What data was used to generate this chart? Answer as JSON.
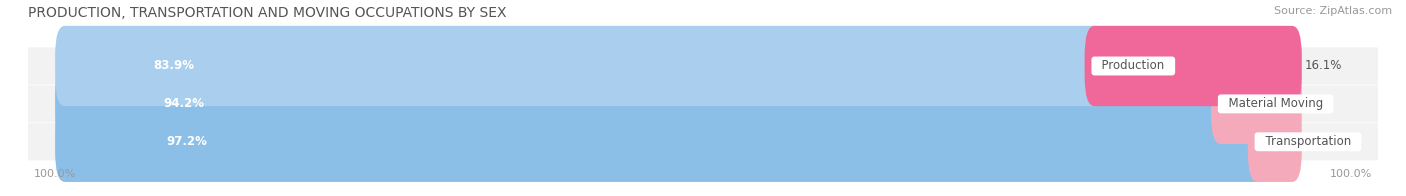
{
  "title": "PRODUCTION, TRANSPORTATION AND MOVING OCCUPATIONS BY SEX",
  "source": "Source: ZipAtlas.com",
  "categories": [
    "Transportation",
    "Material Moving",
    "Production"
  ],
  "male_values": [
    97.2,
    94.2,
    83.9
  ],
  "female_values": [
    2.8,
    5.8,
    16.1
  ],
  "male_colors": [
    "#8BBFE8",
    "#8BBFE8",
    "#AACFEE"
  ],
  "female_colors": [
    "#F5AABB",
    "#F5AABB",
    "#F0689A"
  ],
  "bar_bg_color": "#EFEFEF",
  "label_male_color": "#FFFFFF",
  "label_female_color": "#555555",
  "category_label_color": "#555555",
  "title_color": "#555555",
  "source_color": "#999999",
  "axis_label_color": "#999999",
  "legend_male_color": "#8BBFE8",
  "legend_female_color": "#F5AABB",
  "background_color": "#FFFFFF",
  "row_bg_color": "#F2F2F2",
  "title_fontsize": 10,
  "source_fontsize": 8,
  "bar_label_fontsize": 8.5,
  "category_fontsize": 8.5,
  "axis_fontsize": 8,
  "legend_fontsize": 9,
  "bar_height": 0.52,
  "xlim_left": -3,
  "xlim_right": 107
}
